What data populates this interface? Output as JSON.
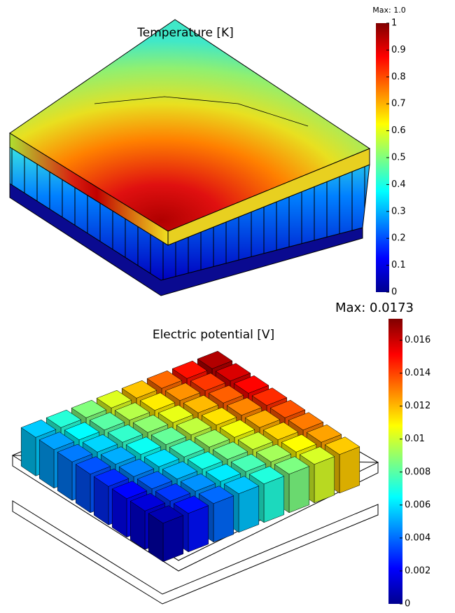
{
  "panels": [
    {
      "title": "Temperature [K]",
      "max_label": "Max: 1.0",
      "colorbar": {
        "range": [
          0,
          1
        ],
        "ticks": [
          0,
          0.1,
          0.2,
          0.3,
          0.4,
          0.5,
          0.6,
          0.7,
          0.8,
          0.9,
          1
        ]
      }
    },
    {
      "title": "Electric potential [V]",
      "max_label": "Max: 0.0173",
      "colorbar": {
        "range": [
          0,
          0.0173
        ],
        "ticks": [
          0,
          0.002,
          0.004,
          0.006,
          0.008,
          0.01,
          0.012,
          0.014,
          0.016
        ]
      }
    }
  ]
}
